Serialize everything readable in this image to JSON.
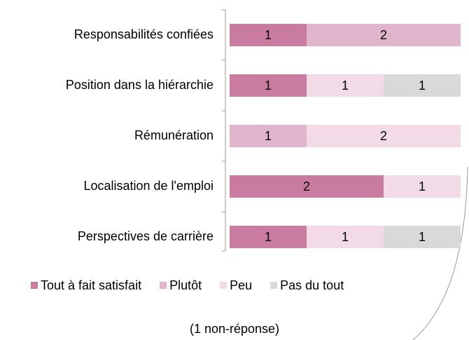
{
  "chart_data": {
    "type": "stacked-barh",
    "categories": [
      "Responsabilités confiées",
      "Position dans la hiérarchie",
      "Rémunération",
      "Localisation de l'emploi",
      "Perspectives de carrière"
    ],
    "series": [
      {
        "name": "Tout à fait satisfait",
        "color": "#c97ba0",
        "values": [
          1,
          1,
          0,
          2,
          1
        ]
      },
      {
        "name": "Plutôt",
        "color": "#e0b4ca",
        "values": [
          2,
          0,
          1,
          0,
          0
        ]
      },
      {
        "name": "Peu",
        "color": "#f2dbe6",
        "values": [
          0,
          1,
          2,
          1,
          1
        ]
      },
      {
        "name": "Pas du tout",
        "color": "#d9d9d9",
        "values": [
          0,
          1,
          0,
          0,
          1
        ]
      }
    ],
    "xlim": [
      0,
      3
    ],
    "note": "(1 non-réponse)"
  }
}
